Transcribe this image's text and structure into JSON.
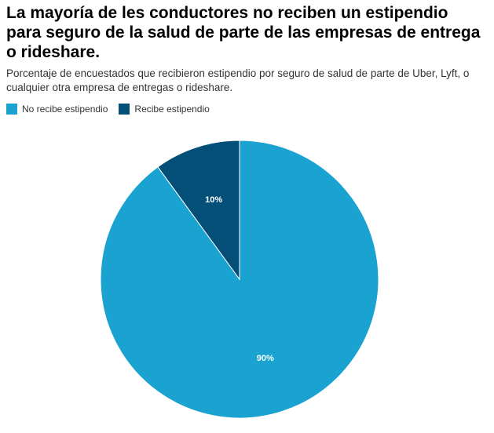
{
  "chart_data": {
    "type": "pie",
    "title": "La mayoría de les conductores no reciben un estipendio para seguro de la salud de parte de las empresas de entrega o rideshare.",
    "subtitle": "Porcentaje de encuestados que recibieron estipendio por seguro de salud de parte de Uber, Lyft, o cualquier otra empresa de entregas o rideshare.",
    "legend_position": "top-left",
    "slices": [
      {
        "name": "No recibe estipendio",
        "value": 90,
        "label": "90%",
        "color": "#1aa3d1"
      },
      {
        "name": "Recibe estipendio",
        "value": 10,
        "label": "10%",
        "color": "#044f78"
      }
    ]
  }
}
